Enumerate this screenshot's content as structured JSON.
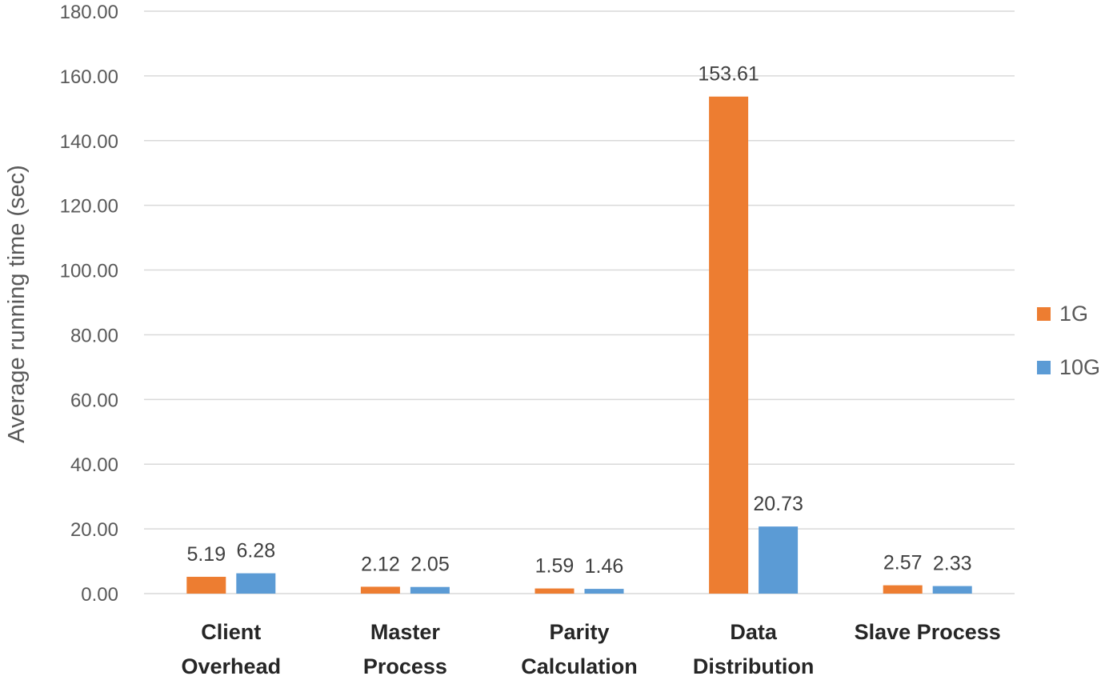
{
  "chart_data": {
    "type": "bar",
    "title": "",
    "xlabel": "",
    "ylabel": "Average running time (sec)",
    "ylim": [
      0,
      180
    ],
    "yticks": [
      "0.00",
      "20.00",
      "40.00",
      "60.00",
      "80.00",
      "100.00",
      "120.00",
      "140.00",
      "160.00",
      "180.00"
    ],
    "grid": true,
    "legend_position": "right",
    "categories": [
      [
        "Client",
        "Overhead"
      ],
      [
        "Master",
        "Process"
      ],
      [
        "Parity",
        "Calculation"
      ],
      [
        "Data",
        "Distribution"
      ],
      [
        "Slave Process"
      ]
    ],
    "series": [
      {
        "name": "1G",
        "color": "#ED7D31",
        "values": [
          5.19,
          2.12,
          1.59,
          153.61,
          2.57
        ],
        "labels": [
          "5.19",
          "2.12",
          "1.59",
          "153.61",
          "2.57"
        ]
      },
      {
        "name": "10G",
        "color": "#5B9BD5",
        "values": [
          6.28,
          2.05,
          1.46,
          20.73,
          2.33
        ],
        "labels": [
          "6.28",
          "2.05",
          "1.46",
          "20.73",
          "2.33"
        ]
      }
    ]
  }
}
